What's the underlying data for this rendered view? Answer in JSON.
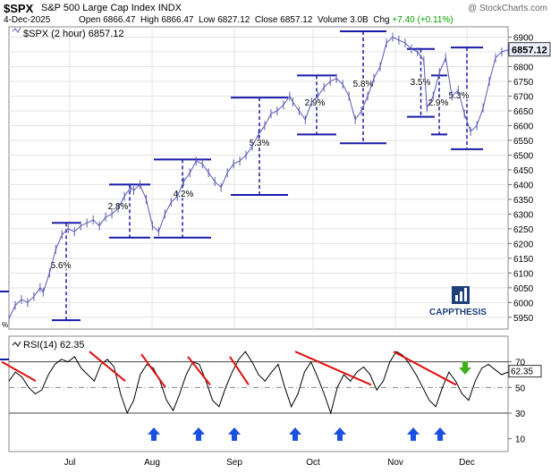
{
  "header": {
    "symbol": "$SPX",
    "name": "S&P 500 Large Cap Index",
    "exchange": "INDX",
    "source": "@ StockCharts.com",
    "date": "4-Dec-2025",
    "open_label": "Open",
    "open": "6866.47",
    "high_label": "High",
    "high": "6866.47",
    "low_label": "Low",
    "low": "6827.12",
    "close_label": "Close",
    "close": "6857.12",
    "volume_label": "Volume",
    "volume": "3.0B",
    "chg_label": "Chg",
    "chg": "+7.40 (+0.11%)"
  },
  "price_legend": "$SPX (2 hour) 6857.12",
  "rsi_legend": "RSI(14) 62.35",
  "logo_text": "CAPPTHESIS",
  "colors": {
    "price_line": "#5a5ab4",
    "annotation": "#1a1aa8",
    "trendline": "#e01010",
    "arrow_up": "#1a50e0",
    "arrow_down": "#40b020",
    "grid": "#e4e4e4",
    "last_price_bg": "#eef0ff"
  },
  "chart_data": [
    {
      "type": "line",
      "title": "$SPX (2 hour)",
      "x_ticks": [
        "Jul",
        "Aug",
        "Sep",
        "Oct",
        "Nov",
        "Dec"
      ],
      "ylim": [
        5910,
        6935
      ],
      "y_ticks": [
        5950,
        6000,
        6050,
        6100,
        6150,
        6200,
        6250,
        6300,
        6350,
        6400,
        6450,
        6500,
        6550,
        6600,
        6650,
        6700,
        6750,
        6800,
        6850,
        6900
      ],
      "last_value": 6857.12,
      "last_value_label": "6857.12",
      "grid": true,
      "series_points": [
        [
          0,
          5945
        ],
        [
          2,
          5990
        ],
        [
          4,
          6010
        ],
        [
          6,
          6000
        ],
        [
          8,
          6020
        ],
        [
          10,
          6050
        ],
        [
          11,
          6035
        ],
        [
          13,
          6100
        ],
        [
          15,
          6180
        ],
        [
          17,
          6230
        ],
        [
          19,
          6250
        ],
        [
          21,
          6240
        ],
        [
          23,
          6260
        ],
        [
          25,
          6270
        ],
        [
          27,
          6280
        ],
        [
          29,
          6260
        ],
        [
          31,
          6290
        ],
        [
          33,
          6300
        ],
        [
          35,
          6320
        ],
        [
          37,
          6360
        ],
        [
          39,
          6390
        ],
        [
          40,
          6380
        ],
        [
          42,
          6400
        ],
        [
          44,
          6350
        ],
        [
          46,
          6260
        ],
        [
          48,
          6240
        ],
        [
          50,
          6300
        ],
        [
          52,
          6340
        ],
        [
          54,
          6360
        ],
        [
          56,
          6410
        ],
        [
          58,
          6440
        ],
        [
          60,
          6480
        ],
        [
          62,
          6470
        ],
        [
          64,
          6440
        ],
        [
          66,
          6410
        ],
        [
          68,
          6390
        ],
        [
          70,
          6440
        ],
        [
          72,
          6470
        ],
        [
          74,
          6480
        ],
        [
          76,
          6500
        ],
        [
          78,
          6530
        ],
        [
          80,
          6570
        ],
        [
          82,
          6600
        ],
        [
          84,
          6640
        ],
        [
          86,
          6650
        ],
        [
          88,
          6670
        ],
        [
          90,
          6700
        ],
        [
          91,
          6680
        ],
        [
          93,
          6650
        ],
        [
          95,
          6620
        ],
        [
          97,
          6680
        ],
        [
          99,
          6700
        ],
        [
          101,
          6730
        ],
        [
          103,
          6750
        ],
        [
          105,
          6760
        ],
        [
          107,
          6740
        ],
        [
          109,
          6700
        ],
        [
          111,
          6620
        ],
        [
          113,
          6650
        ],
        [
          115,
          6700
        ],
        [
          117,
          6760
        ],
        [
          119,
          6800
        ],
        [
          121,
          6880
        ],
        [
          123,
          6900
        ],
        [
          125,
          6890
        ],
        [
          127,
          6880
        ],
        [
          129,
          6860
        ],
        [
          131,
          6850
        ],
        [
          133,
          6820
        ],
        [
          134,
          6660
        ],
        [
          136,
          6700
        ],
        [
          138,
          6780
        ],
        [
          140,
          6830
        ],
        [
          142,
          6700
        ],
        [
          144,
          6720
        ],
        [
          146,
          6640
        ],
        [
          148,
          6580
        ],
        [
          150,
          6600
        ],
        [
          152,
          6660
        ],
        [
          154,
          6750
        ],
        [
          156,
          6830
        ],
        [
          158,
          6850
        ],
        [
          160,
          6857
        ]
      ],
      "annotations": [
        {
          "label": "5.6%",
          "low": 5940,
          "high": 6270
        },
        {
          "label": "2.8%",
          "low": 6220,
          "high": 6400
        },
        {
          "label": "4.2%",
          "low": 6220,
          "high": 6485
        },
        {
          "label": "5.3%",
          "low": 6365,
          "high": 6695
        },
        {
          "label": "2.9%",
          "low": 6570,
          "high": 6770
        },
        {
          "label": "5.8%",
          "low": 6540,
          "high": 6920
        },
        {
          "label": "3.5%",
          "low": 6630,
          "high": 6860
        },
        {
          "label": "2.9%",
          "low": 6570,
          "high": 6770
        },
        {
          "label": "5.3%",
          "low": 6520,
          "high": 6865
        }
      ]
    },
    {
      "type": "line",
      "title": "RSI(14)",
      "ylim": [
        0,
        90
      ],
      "y_ticks": [
        10,
        30,
        50,
        70
      ],
      "reference_lines": [
        30,
        50,
        70
      ],
      "last_value": 62.35,
      "last_value_label": "62.35",
      "series_points": [
        [
          0,
          55
        ],
        [
          2,
          62
        ],
        [
          4,
          58
        ],
        [
          6,
          50
        ],
        [
          8,
          45
        ],
        [
          10,
          48
        ],
        [
          12,
          60
        ],
        [
          14,
          68
        ],
        [
          16,
          72
        ],
        [
          18,
          70
        ],
        [
          20,
          74
        ],
        [
          22,
          65
        ],
        [
          24,
          60
        ],
        [
          26,
          55
        ],
        [
          28,
          68
        ],
        [
          30,
          72
        ],
        [
          32,
          66
        ],
        [
          34,
          45
        ],
        [
          36,
          30
        ],
        [
          38,
          40
        ],
        [
          40,
          60
        ],
        [
          42,
          68
        ],
        [
          44,
          65
        ],
        [
          46,
          55
        ],
        [
          48,
          40
        ],
        [
          50,
          32
        ],
        [
          52,
          45
        ],
        [
          54,
          60
        ],
        [
          56,
          70
        ],
        [
          58,
          68
        ],
        [
          60,
          55
        ],
        [
          62,
          40
        ],
        [
          64,
          35
        ],
        [
          66,
          50
        ],
        [
          68,
          62
        ],
        [
          70,
          72
        ],
        [
          72,
          78
        ],
        [
          74,
          70
        ],
        [
          76,
          60
        ],
        [
          78,
          55
        ],
        [
          80,
          62
        ],
        [
          82,
          68
        ],
        [
          84,
          50
        ],
        [
          86,
          35
        ],
        [
          88,
          45
        ],
        [
          90,
          62
        ],
        [
          92,
          70
        ],
        [
          94,
          58
        ],
        [
          96,
          45
        ],
        [
          98,
          30
        ],
        [
          100,
          50
        ],
        [
          102,
          60
        ],
        [
          104,
          55
        ],
        [
          106,
          62
        ],
        [
          108,
          66
        ],
        [
          110,
          60
        ],
        [
          112,
          48
        ],
        [
          114,
          55
        ],
        [
          116,
          70
        ],
        [
          118,
          78
        ],
        [
          120,
          75
        ],
        [
          122,
          68
        ],
        [
          124,
          60
        ],
        [
          126,
          50
        ],
        [
          128,
          40
        ],
        [
          130,
          35
        ],
        [
          132,
          50
        ],
        [
          134,
          62
        ],
        [
          136,
          55
        ],
        [
          138,
          45
        ],
        [
          140,
          40
        ],
        [
          142,
          55
        ],
        [
          144,
          65
        ],
        [
          146,
          68
        ],
        [
          148,
          64
        ],
        [
          150,
          60
        ],
        [
          152,
          62
        ]
      ],
      "trendlines": [
        {
          "x1": -8,
          "y1": 70,
          "x2": 30,
          "y2": 55
        },
        {
          "x1": 90,
          "y1": 78,
          "x2": 130,
          "y2": 55
        },
        {
          "x1": 148,
          "y1": 76,
          "x2": 175,
          "y2": 50
        },
        {
          "x1": 200,
          "y1": 74,
          "x2": 225,
          "y2": 52
        },
        {
          "x1": 247,
          "y1": 74,
          "x2": 268,
          "y2": 52
        },
        {
          "x1": 320,
          "y1": 78,
          "x2": 405,
          "y2": 52
        },
        {
          "x1": 430,
          "y1": 78,
          "x2": 500,
          "y2": 52
        }
      ],
      "buy_arrows": [
        172,
        222,
        262,
        330,
        380,
        462,
        492
      ],
      "sell_arrows": [
        520
      ]
    }
  ]
}
